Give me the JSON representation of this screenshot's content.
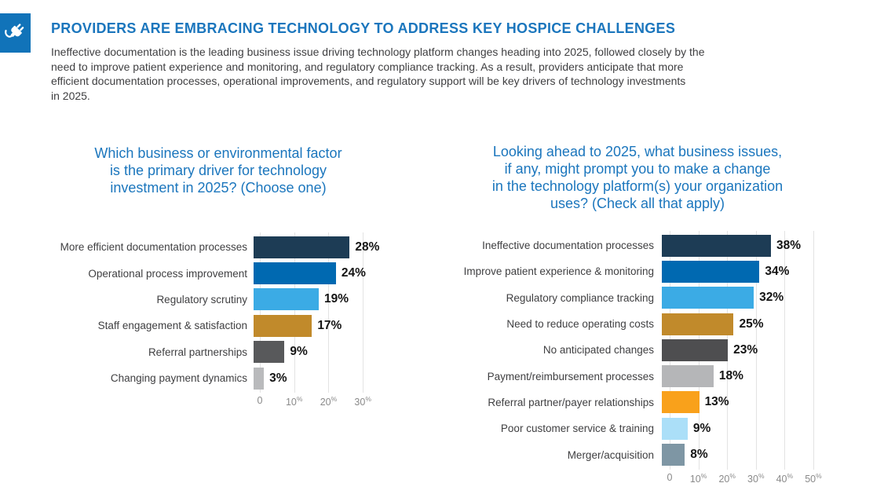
{
  "header": {
    "title": "PROVIDERS ARE EMBRACING TECHNOLOGY TO ADDRESS KEY HOSPICE CHALLENGES",
    "body_lines": [
      "Ineffective documentation is the leading business issue driving technology platform changes heading into 2025, followed closely by the",
      "need to improve patient experience and monitoring, and regulatory compliance tracking. As a result, providers anticipate that more",
      "efficient documentation processes, operational improvements, and regulatory support will be key drivers of technology investments",
      "in 2025."
    ],
    "icon": "plug-icon"
  },
  "colors": {
    "title_blue": "#1b76bd",
    "icon_background": "#1173b9",
    "body_text": "#3f3f41",
    "axis_text": "#8a8a8a",
    "gridline": "#e3e3e3",
    "value_text": "#141414"
  },
  "chart_data": [
    {
      "type": "bar",
      "orientation": "horizontal",
      "title": "Which business or environmental factor is the primary driver for technology investment in 2025? (Choose one)",
      "title_lines": [
        "Which business or environmental factor",
        "is the primary driver for technology",
        "investment in 2025? (Choose one)"
      ],
      "categories": [
        "More efficient documentation processes",
        "Operational process improvement",
        "Regulatory scrutiny",
        "Staff engagement & satisfaction",
        "Referral partnerships",
        "Changing payment dynamics"
      ],
      "values": [
        28,
        24,
        19,
        17,
        9,
        3
      ],
      "value_labels": [
        "28%",
        "24%",
        "19%",
        "17%",
        "9%",
        "3%"
      ],
      "bar_colors": [
        "#1d3c55",
        "#0069b1",
        "#3babe5",
        "#c18a2b",
        "#58595b",
        "#b9babc"
      ],
      "xlim": [
        0,
        36.6
      ],
      "ticks": [
        {
          "v": 0,
          "label": "0",
          "sup": ""
        },
        {
          "v": 10,
          "label": "10",
          "sup": "%"
        },
        {
          "v": 20,
          "label": "20",
          "sup": "%"
        },
        {
          "v": 30,
          "label": "30",
          "sup": "%"
        }
      ],
      "grid": true,
      "legend": "none"
    },
    {
      "type": "bar",
      "orientation": "horizontal",
      "title": "Looking ahead to 2025, what business issues, if any, might prompt you to make a change in the technology platform(s) your organization uses? (Check all that apply)",
      "title_lines": [
        "Looking ahead to 2025, what business issues,",
        "if any, might prompt you to make a change",
        "in the technology platform(s) your organization",
        "uses? (Check all that apply)"
      ],
      "categories": [
        "Ineffective documentation processes",
        "Improve patient experience & monitoring",
        "Regulatory compliance tracking",
        "Need to reduce operating costs",
        "No anticipated changes",
        "Payment/reimbursement processes",
        "Referral partner/payer relationships",
        "Poor customer service & training",
        "Merger/acquisition"
      ],
      "values": [
        38,
        34,
        32,
        25,
        23,
        18,
        13,
        9,
        8
      ],
      "value_labels": [
        "38%",
        "34%",
        "32%",
        "25%",
        "23%",
        "18%",
        "13%",
        "9%",
        "8%"
      ],
      "bar_colors": [
        "#1d3c55",
        "#0069b1",
        "#3babe5",
        "#c18a2b",
        "#4e4e50",
        "#b5b6b8",
        "#f9a11b",
        "#abdff8",
        "#7e96a4"
      ],
      "xlim": [
        0,
        56.3
      ],
      "ticks": [
        {
          "v": 0,
          "label": "0",
          "sup": ""
        },
        {
          "v": 10,
          "label": "10",
          "sup": "%"
        },
        {
          "v": 20,
          "label": "20",
          "sup": "%"
        },
        {
          "v": 30,
          "label": "30",
          "sup": "%"
        },
        {
          "v": 40,
          "label": "40",
          "sup": "%"
        },
        {
          "v": 50,
          "label": "50",
          "sup": "%"
        }
      ],
      "grid": true,
      "legend": "none"
    }
  ]
}
